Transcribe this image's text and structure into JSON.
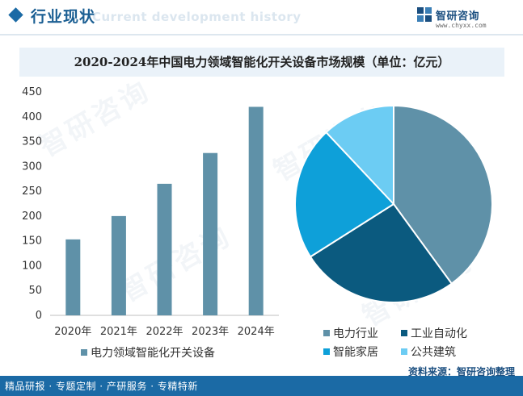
{
  "header": {
    "title": "行业现状",
    "subtitle": "Current development history",
    "brand_name": "智研咨询",
    "brand_url": "www.chyxx.com"
  },
  "footer": {
    "tagline": "精品研报 · 专题定制 · 产研服务 · 专精特新",
    "source": "资料来源：智研咨询整理"
  },
  "watermark": "智研咨询",
  "colors": {
    "bar": "#5f91a8",
    "header_accent": "#1b6aa5",
    "footer_bg": "#1b6aa5"
  },
  "chart_data": [
    {
      "type": "bar",
      "title": "2020-2024年中国电力领域智能化开关设备市场规模（单位：亿元）",
      "categories": [
        "2020年",
        "2021年",
        "2022年",
        "2023年",
        "2024年"
      ],
      "series": [
        {
          "name": "电力领域智能化开关设备",
          "values": [
            153,
            200,
            265,
            327,
            420
          ],
          "color": "#5f91a8"
        }
      ],
      "ylim": [
        0,
        450
      ],
      "yticks": [
        0,
        50,
        100,
        150,
        200,
        250,
        300,
        350,
        400,
        450
      ],
      "grid": false,
      "legend": "bottom"
    },
    {
      "type": "pie",
      "slices": [
        {
          "label": "电力行业",
          "value": 40,
          "color": "#5f91a8"
        },
        {
          "label": "工业自动化",
          "value": 26,
          "color": "#0b5a7f"
        },
        {
          "label": "智能家居",
          "value": 22,
          "color": "#0ea0d9"
        },
        {
          "label": "公共建筑",
          "value": 12,
          "color": "#6cccf3"
        }
      ],
      "legend": "bottom"
    }
  ]
}
